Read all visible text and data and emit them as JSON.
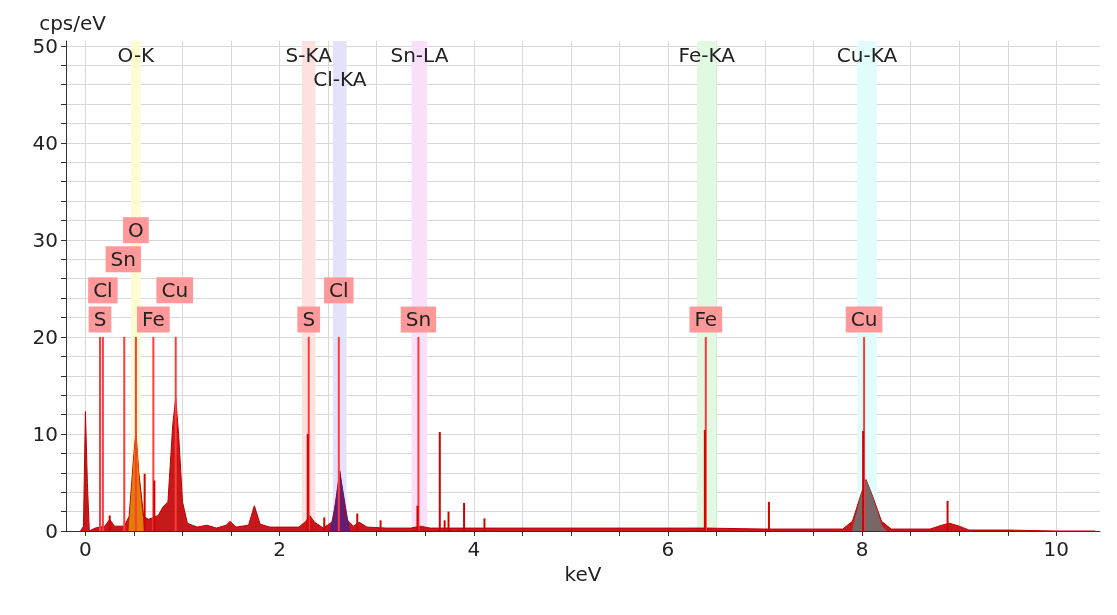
{
  "chart_data": {
    "type": "area",
    "xlabel": "keV",
    "ylabel": "cps/eV",
    "xlim": [
      -0.2,
      10.45
    ],
    "ylim": [
      0,
      50.5
    ],
    "xticks": [
      0,
      {
        "value": 0.5,
        "label": null
      },
      {
        "value": 1,
        "label": null
      },
      {
        "value": 1.5,
        "label": null
      },
      2,
      {
        "value": 2.5,
        "label": null
      },
      {
        "value": 3,
        "label": null
      },
      {
        "value": 3.5,
        "label": null
      },
      4,
      {
        "value": 4.5,
        "label": null
      },
      {
        "value": 5,
        "label": null
      },
      {
        "value": 5.5,
        "label": null
      },
      6,
      {
        "value": 6.5,
        "label": null
      },
      {
        "value": 7,
        "label": null
      },
      {
        "value": 7.5,
        "label": null
      },
      8,
      {
        "value": 8.5,
        "label": null
      },
      {
        "value": 9,
        "label": null
      },
      {
        "value": 9.5,
        "label": null
      },
      10
    ],
    "yticks": [
      0,
      {
        "value": 2,
        "label": null
      },
      {
        "value": 4,
        "label": null
      },
      {
        "value": 6,
        "label": null
      },
      {
        "value": 8,
        "label": null
      },
      10,
      {
        "value": 12,
        "label": null
      },
      {
        "value": 14,
        "label": null
      },
      {
        "value": 16,
        "label": null
      },
      {
        "value": 18,
        "label": null
      },
      20,
      {
        "value": 22,
        "label": null
      },
      {
        "value": 24,
        "label": null
      },
      {
        "value": 26,
        "label": null
      },
      {
        "value": 28,
        "label": null
      },
      30,
      {
        "value": 32,
        "label": null
      },
      {
        "value": 34,
        "label": null
      },
      {
        "value": 36,
        "label": null
      },
      {
        "value": 38,
        "label": null
      },
      40,
      {
        "value": 42,
        "label": null
      },
      {
        "value": 44,
        "label": null
      },
      {
        "value": 46,
        "label": null
      },
      {
        "value": 48,
        "label": null
      },
      50
    ],
    "grid": true,
    "series": [
      {
        "color": "#c00000",
        "x": [
          -0.05,
          -0.02,
          0,
          0.02,
          0.04,
          0.1,
          0.2,
          0.25,
          0.3,
          0.4,
          0.45,
          0.5,
          0.52,
          0.55,
          0.6,
          0.65,
          0.75,
          0.8,
          0.85,
          0.9,
          0.93,
          0.96,
          1.0,
          1.05,
          1.15,
          1.25,
          1.35,
          1.45,
          1.49,
          1.55,
          1.68,
          1.74,
          1.8,
          1.9,
          2.2,
          2.27,
          2.31,
          2.36,
          2.45,
          2.55,
          2.62,
          2.69,
          2.76,
          2.82,
          2.9,
          3.1,
          3.35,
          3.45,
          3.55,
          4.0,
          5.0,
          6.0,
          6.4,
          7.0,
          7.8,
          7.9,
          7.98,
          8.04,
          8.1,
          8.2,
          8.3,
          8.7,
          8.82,
          8.9,
          9.0,
          9.1,
          9.5,
          10.0,
          10.4
        ],
        "values": [
          0,
          0.5,
          12.3,
          5,
          0,
          0.3,
          0.5,
          1.2,
          0.5,
          0.5,
          1.5,
          8,
          10.2,
          6,
          1.5,
          1.2,
          1.6,
          2.5,
          3,
          11,
          13.7,
          10,
          3,
          0.8,
          0.4,
          0.6,
          0.3,
          0.6,
          1.0,
          0.4,
          0.6,
          2.6,
          0.7,
          0.4,
          0.4,
          1.0,
          1.6,
          0.9,
          0.3,
          1.0,
          6.2,
          1.2,
          0.5,
          0.9,
          0.4,
          0.3,
          0.3,
          0.5,
          0.3,
          0.3,
          0.3,
          0.3,
          0.3,
          0.2,
          0.2,
          1.0,
          3.5,
          5.3,
          3.8,
          1.0,
          0.2,
          0.2,
          0.6,
          0.8,
          0.5,
          0.1,
          0.1,
          0,
          0
        ]
      },
      {
        "type": "area",
        "color": "#e08a00",
        "x": [
          0.45,
          0.5,
          0.52,
          0.55,
          0.6
        ],
        "values": [
          0,
          7,
          10,
          5,
          0
        ]
      },
      {
        "type": "area",
        "color": "#552080",
        "x": [
          2.52,
          2.58,
          2.62,
          2.67,
          2.72
        ],
        "values": [
          0,
          3,
          6.0,
          3,
          0
        ]
      },
      {
        "type": "area",
        "color": "#707070",
        "x": [
          7.9,
          7.98,
          8.04,
          8.1,
          8.2,
          8.25
        ],
        "values": [
          0,
          3.2,
          5.2,
          3.6,
          0.5,
          0
        ]
      },
      {
        "type": "bar",
        "color": "#ff3b3b",
        "x": [
          0.15,
          0.18,
          0.4,
          0.52,
          0.7,
          0.93,
          2.3,
          2.61,
          3.43,
          6.39,
          8.02
        ],
        "values": [
          20,
          20,
          20,
          20,
          20,
          20,
          20,
          20,
          20,
          20,
          20
        ]
      },
      {
        "type": "bar",
        "color": "#d40000",
        "x": [
          0.25,
          0.61,
          0.71,
          2.29,
          2.46,
          2.8,
          3.04,
          3.42,
          3.65,
          3.7,
          3.74,
          3.9,
          4.11,
          6.38,
          7.04,
          8.01,
          8.88
        ],
        "values": [
          1.6,
          5.9,
          5.2,
          10,
          1.4,
          1.8,
          1.1,
          2.6,
          10.2,
          1.1,
          2.0,
          2.9,
          1.3,
          10.4,
          3.0,
          10.3,
          3.1
        ]
      }
    ],
    "bands": [
      {
        "axis": "x",
        "from": 0.47,
        "to": 0.57,
        "label": "O-K",
        "color": "#fdfbd0"
      },
      {
        "axis": "x",
        "from": 2.23,
        "to": 2.37,
        "label": "S-KA",
        "color": "#fde0e0"
      },
      {
        "axis": "x",
        "from": 2.55,
        "to": 2.69,
        "label": "Cl-KA",
        "color": "#e2e2fb"
      },
      {
        "axis": "x",
        "from": 3.36,
        "to": 3.52,
        "label": "Sn-LA",
        "color": "#f9dff9"
      },
      {
        "axis": "x",
        "from": 6.3,
        "to": 6.5,
        "label": "Fe-KA",
        "color": "#e0f9e0"
      },
      {
        "axis": "x",
        "from": 7.95,
        "to": 8.15,
        "label": "Cu-KA",
        "color": "#e0fcfc"
      }
    ],
    "annotations": [
      {
        "text": "S",
        "x": 0.15,
        "y": 21.8
      },
      {
        "text": "Cl",
        "x": 0.18,
        "y": 24.8
      },
      {
        "text": "Sn",
        "x": 0.39,
        "y": 28
      },
      {
        "text": "O",
        "x": 0.52,
        "y": 31
      },
      {
        "text": "Fe",
        "x": 0.7,
        "y": 21.8
      },
      {
        "text": "Cu",
        "x": 0.92,
        "y": 24.8
      },
      {
        "text": "S",
        "x": 2.3,
        "y": 21.8
      },
      {
        "text": "Cl",
        "x": 2.61,
        "y": 24.8
      },
      {
        "text": "Sn",
        "x": 3.43,
        "y": 21.8
      },
      {
        "text": "Fe",
        "x": 6.39,
        "y": 21.8
      },
      {
        "text": "Cu",
        "x": 8.02,
        "y": 21.8
      }
    ]
  }
}
